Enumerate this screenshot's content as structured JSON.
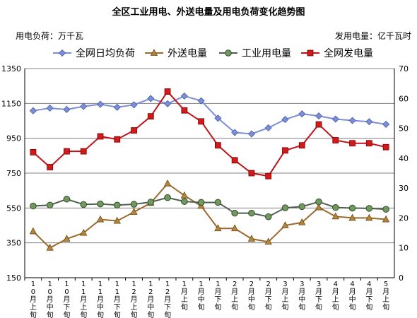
{
  "chart_data": {
    "type": "line",
    "title": "全区工业用电、外送电量及用电负荷变化趋势图",
    "left_unit": "用电负荷：万千瓦",
    "right_unit": "发用电量：亿千瓦时",
    "categories": [
      "10月上旬",
      "10月中旬",
      "10月下旬",
      "11月上旬",
      "11月中旬",
      "11月下旬",
      "12月上旬",
      "12月中旬",
      "12月下旬",
      "1月上旬",
      "1月中旬",
      "1月下旬",
      "2月上旬",
      "2月中旬",
      "2月下旬",
      "3月上旬",
      "3月中旬",
      "3月下旬",
      "4月上旬",
      "4月中旬",
      "4月下旬",
      "5月上旬"
    ],
    "series": [
      {
        "name": "全网日均负荷",
        "axis": "left",
        "color": "#7b8fd6",
        "marker": "diamond",
        "values": [
          1108,
          1123,
          1115,
          1133,
          1145,
          1128,
          1142,
          1178,
          1148,
          1192,
          1165,
          1065,
          983,
          975,
          1010,
          1058,
          1090,
          1078,
          1060,
          1052,
          1045,
          1030
        ]
      },
      {
        "name": "外送电量",
        "axis": "right",
        "color": "#9b6a2e",
        "marker": "triangle",
        "values": [
          15.5,
          10,
          13,
          15,
          19.5,
          19,
          22,
          25,
          31.5,
          27.5,
          24,
          16.5,
          16.5,
          13,
          12,
          17.5,
          18.5,
          23.5,
          20.5,
          20,
          20,
          19.5
        ]
      },
      {
        "name": "工业用电量",
        "axis": "right",
        "color": "#4f5f4f",
        "marker": "circle",
        "values": [
          24,
          24.3,
          26.3,
          24.5,
          24.7,
          24.3,
          24.6,
          25.3,
          26.8,
          25.5,
          25.2,
          25.2,
          21.6,
          21.6,
          20.4,
          23.4,
          23.8,
          25.4,
          23.5,
          23.3,
          23.2,
          22.9
        ]
      },
      {
        "name": "全网发电量",
        "axis": "right",
        "color": "#c0131a",
        "marker": "square",
        "values": [
          42,
          37,
          42.3,
          42.3,
          47.3,
          46.3,
          49.3,
          54,
          62.3,
          56,
          52.3,
          44.3,
          39.3,
          35,
          34,
          42.6,
          44.3,
          51.3,
          46,
          45,
          45,
          43.7
        ]
      }
    ],
    "left_axis": {
      "min": 150,
      "max": 1350,
      "ticks": [
        150,
        350,
        550,
        750,
        950,
        1150,
        1350
      ]
    },
    "right_axis": {
      "min": 0,
      "max": 70,
      "ticks": [
        0,
        10,
        20,
        30,
        40,
        50,
        60,
        70
      ]
    },
    "grid": true,
    "legend_position": "top"
  }
}
